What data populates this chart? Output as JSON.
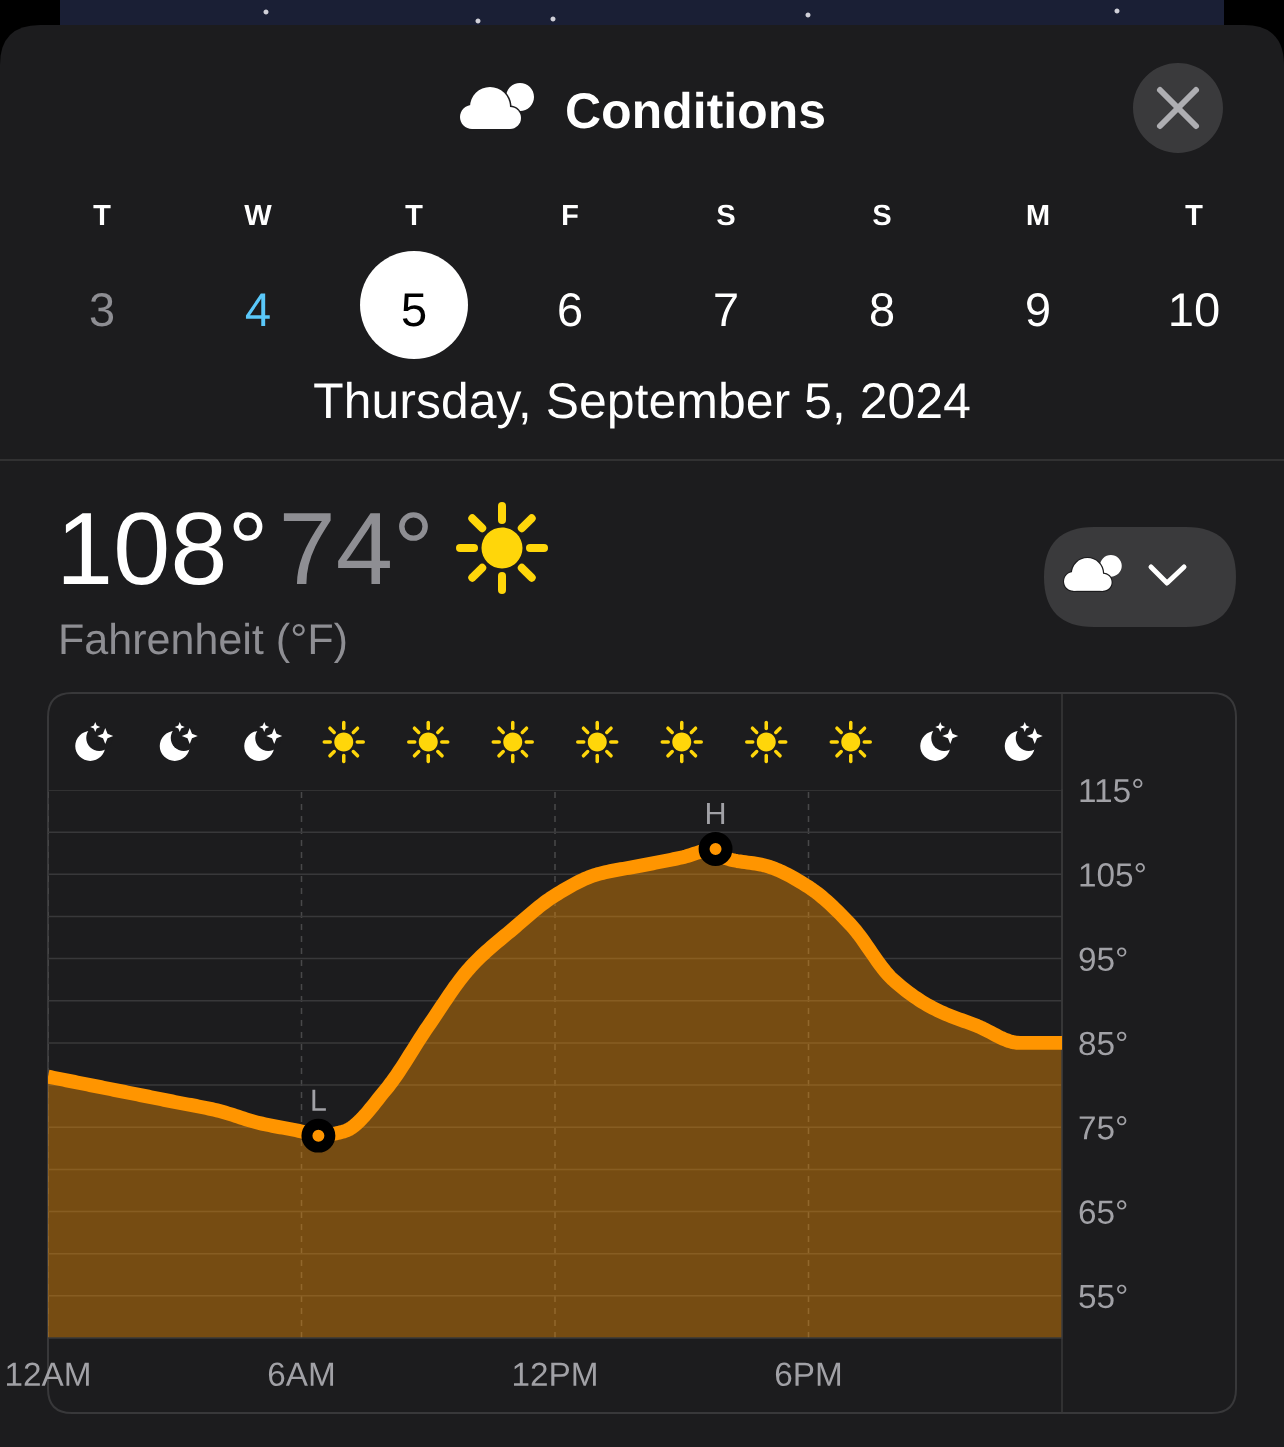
{
  "chart_data": {
    "type": "area",
    "title": "Conditions",
    "subtitle": "Thursday, September 5, 2024",
    "x": [
      "2024-09-05T00:00",
      "2024-09-05T01:00",
      "2024-09-05T02:00",
      "2024-09-05T03:00",
      "2024-09-05T04:00",
      "2024-09-05T05:00",
      "2024-09-05T06:00",
      "2024-09-05T06:24",
      "2024-09-05T07:00",
      "2024-09-05T08:00",
      "2024-09-05T09:00",
      "2024-09-05T10:00",
      "2024-09-05T11:00",
      "2024-09-05T12:00",
      "2024-09-05T13:00",
      "2024-09-05T14:00",
      "2024-09-05T15:00",
      "2024-09-05T15:48",
      "2024-09-05T16:00",
      "2024-09-05T17:00",
      "2024-09-05T18:00",
      "2024-09-05T19:00",
      "2024-09-05T20:00",
      "2024-09-05T21:00",
      "2024-09-05T22:00",
      "2024-09-05T23:00",
      "2024-09-06T00:00"
    ],
    "series": [
      {
        "color": "#ff9500",
        "values": [
          81,
          80,
          79,
          78,
          77,
          75.5,
          74.5,
          74,
          74.5,
          79.5,
          87,
          94,
          98.5,
          102.5,
          105,
          106,
          107,
          108,
          107,
          106,
          103.5,
          99,
          92.5,
          89,
          87,
          85,
          85
        ]
      }
    ],
    "xlim": [
      "2024-09-05T00:00",
      "2024-09-06T00:00"
    ],
    "xticks": [
      {
        "value": "2024-09-05T00:00",
        "label": "12AM"
      },
      {
        "value": "2024-09-05T06:00",
        "label": "6AM"
      },
      {
        "value": "2024-09-05T12:00",
        "label": "12PM"
      },
      {
        "value": "2024-09-05T18:00",
        "label": "6PM"
      }
    ],
    "ylim": [
      50,
      115
    ],
    "yticks": [
      {
        "value": 55,
        "label": "55°"
      },
      {
        "value": 60,
        "label": null
      },
      {
        "value": 65,
        "label": "65°"
      },
      {
        "value": 70,
        "label": null
      },
      {
        "value": 75,
        "label": "75°"
      },
      {
        "value": 80,
        "label": null
      },
      {
        "value": 85,
        "label": "85°"
      },
      {
        "value": 90,
        "label": null
      },
      {
        "value": 95,
        "label": "95°"
      },
      {
        "value": 100,
        "label": null
      },
      {
        "value": 105,
        "label": "105°"
      },
      {
        "value": 110,
        "label": null
      },
      {
        "value": 115,
        "label": "115°"
      }
    ],
    "grid": true,
    "annotations": [
      "T",
      "W",
      "T",
      "F",
      "S",
      "S",
      "M",
      "T",
      "3",
      "4",
      "5",
      "6",
      "7",
      "8",
      "9",
      "10",
      "108°",
      "74°",
      "Fahrenheit (°F)",
      {
        "text": "L",
        "x": "2024-09-05T06:24",
        "y": 74
      },
      {
        "text": "H",
        "x": "2024-09-05T15:48",
        "y": 108
      }
    ]
  }
}
